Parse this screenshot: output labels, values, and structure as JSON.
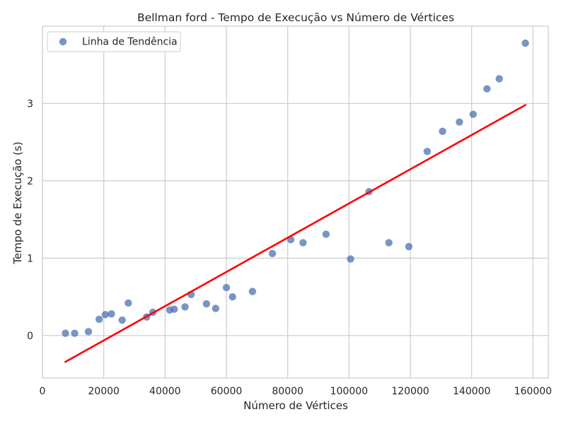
{
  "chart_data": {
    "type": "scatter",
    "title": "Bellman ford - Tempo de Execução vs Número de Vértices",
    "xlabel": "Número de Vértices",
    "ylabel": "Tempo de Execução (s)",
    "xlim": [
      0,
      165000
    ],
    "ylim": [
      -0.55,
      4.0
    ],
    "xticks": [
      0,
      20000,
      40000,
      60000,
      80000,
      100000,
      120000,
      140000,
      160000
    ],
    "yticks": [
      0,
      1,
      2,
      3
    ],
    "grid": true,
    "legend_position": "top-left",
    "legend": [
      "Linha de Tendência"
    ],
    "colors": {
      "points": "#4c72b0",
      "trend": "#ff0000",
      "grid": "#cccccc"
    },
    "series": [
      {
        "name": "Linha de Tendência",
        "type": "scatter",
        "x": [
          7500,
          10500,
          15000,
          18500,
          20500,
          22500,
          26000,
          28000,
          34000,
          36000,
          41500,
          43000,
          46500,
          48500,
          53500,
          56500,
          60000,
          62000,
          68500,
          75000,
          81000,
          85000,
          92500,
          100500,
          106500,
          113000,
          119500,
          125500,
          130500,
          136000,
          140500,
          145000,
          149000,
          157500
        ],
        "y": [
          0.03,
          0.03,
          0.05,
          0.21,
          0.27,
          0.28,
          0.2,
          0.42,
          0.24,
          0.3,
          0.33,
          0.34,
          0.37,
          0.53,
          0.41,
          0.35,
          0.62,
          0.5,
          0.57,
          1.06,
          1.24,
          1.2,
          1.31,
          0.99,
          1.86,
          1.2,
          1.15,
          2.38,
          2.64,
          2.76,
          2.86,
          3.19,
          3.32,
          3.78
        ]
      },
      {
        "type": "line",
        "x": [
          7500,
          157500
        ],
        "y": [
          -0.34,
          2.98
        ]
      }
    ]
  }
}
